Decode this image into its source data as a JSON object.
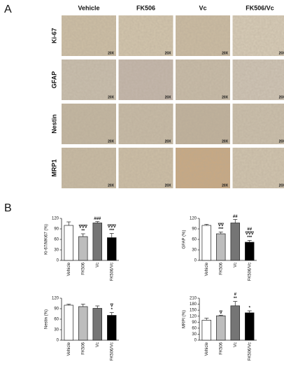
{
  "panel_a": {
    "label": "A",
    "columns": [
      "Vehicle",
      "FK506",
      "Vc",
      "FK506/Vc"
    ],
    "rows": [
      "Ki-67",
      "GFAP",
      "Nestin",
      "MRP1"
    ],
    "magnification": "20X"
  },
  "panel_b": {
    "label": "B"
  },
  "chart_data": [
    {
      "type": "bar",
      "ylabel": "Ki-67/MKi67 (%)",
      "categories": [
        "Vehicle",
        "FK506",
        "Vc",
        "FK506/Vc"
      ],
      "values": [
        100,
        68,
        107,
        65
      ],
      "errors": [
        10,
        8,
        4,
        12
      ],
      "colors": [
        "#ffffff",
        "#bdbdbd",
        "#757575",
        "#000000"
      ],
      "annotations": [
        [],
        [
          "∇∇∇",
          "**"
        ],
        [
          "###"
        ],
        [
          "∇∇∇",
          "***"
        ]
      ],
      "ylim": [
        0,
        120
      ],
      "yticks": [
        0,
        30,
        60,
        90,
        120
      ]
    },
    {
      "type": "bar",
      "ylabel": "GFAP (%)",
      "categories": [
        "Vehicle",
        "FK506",
        "Vc",
        "FK506/Vc"
      ],
      "values": [
        100,
        76,
        107,
        52
      ],
      "errors": [
        3,
        5,
        10,
        5
      ],
      "colors": [
        "#ffffff",
        "#bdbdbd",
        "#757575",
        "#000000"
      ],
      "annotations": [
        [],
        [
          "∇∇",
          "***"
        ],
        [
          "##"
        ],
        [
          "##",
          "∇∇∇",
          "***"
        ]
      ],
      "ylim": [
        0,
        120
      ],
      "yticks": [
        0,
        30,
        60,
        90,
        120
      ]
    },
    {
      "type": "bar",
      "ylabel": "Nestin (%)",
      "categories": [
        "Vehicle",
        "FK506",
        "Vc",
        "FK506/Vc"
      ],
      "values": [
        100,
        96,
        91,
        71
      ],
      "errors": [
        3,
        7,
        7,
        8
      ],
      "colors": [
        "#ffffff",
        "#bdbdbd",
        "#757575",
        "#000000"
      ],
      "annotations": [
        [],
        [],
        [],
        [
          "∇",
          "*"
        ]
      ],
      "ylim": [
        0,
        120
      ],
      "yticks": [
        0,
        30,
        60,
        90,
        120
      ]
    },
    {
      "type": "bar",
      "ylabel": "MRPI (%)",
      "categories": [
        "Vehicle",
        "FK506",
        "Vc",
        "FK506/Vc"
      ],
      "values": [
        100,
        122,
        172,
        137
      ],
      "errors": [
        10,
        3,
        22,
        10
      ],
      "colors": [
        "#ffffff",
        "#bdbdbd",
        "#757575",
        "#000000"
      ],
      "annotations": [
        [],
        [
          "∇"
        ],
        [
          "#",
          "**"
        ],
        [
          "*"
        ]
      ],
      "ylim": [
        0,
        210
      ],
      "yticks": [
        0,
        30,
        60,
        90,
        120,
        150,
        180,
        210
      ]
    }
  ]
}
